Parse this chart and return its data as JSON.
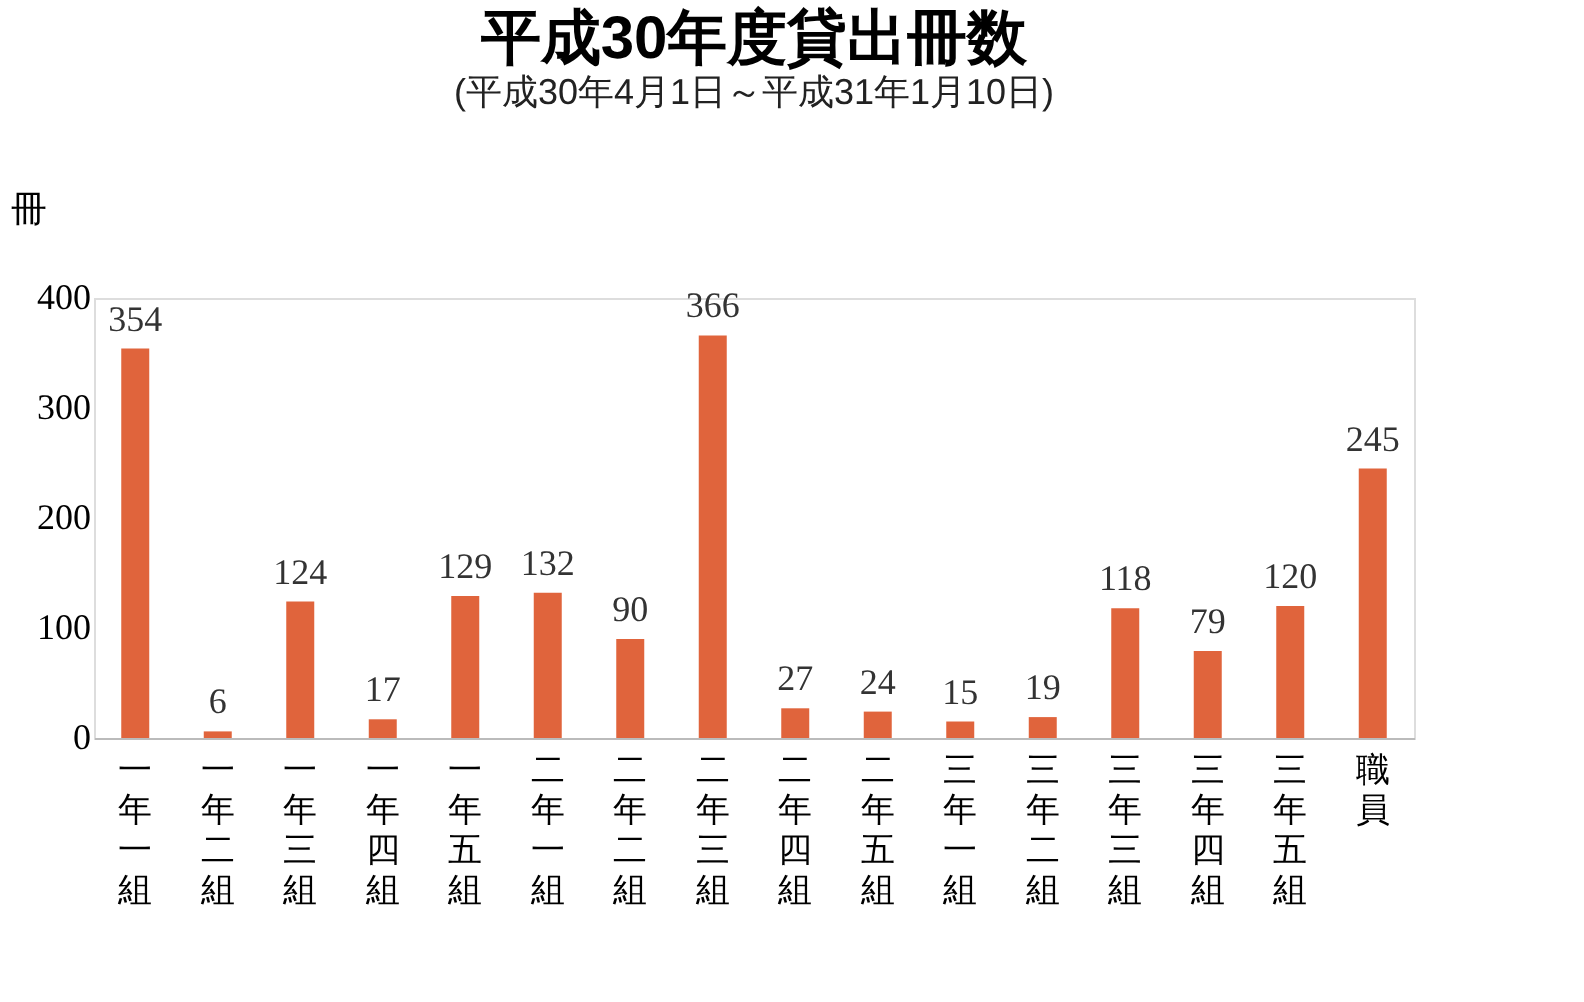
{
  "chart_data": {
    "type": "bar",
    "title": "平成30年度貸出冊数",
    "subtitle": "(平成30年4月1日～平成31年1月10日)",
    "ylabel": "冊",
    "categories": [
      "一年一組",
      "一年二組",
      "一年三組",
      "一年四組",
      "一年五組",
      "二年一組",
      "二年二組",
      "二年三組",
      "二年四組",
      "二年五組",
      "三年一組",
      "三年二組",
      "三年三組",
      "三年四組",
      "三年五組",
      "職員"
    ],
    "values": [
      354,
      6,
      124,
      17,
      129,
      132,
      90,
      366,
      27,
      24,
      15,
      19,
      118,
      79,
      120,
      245
    ],
    "color": "#e0643c",
    "ylim": [
      0,
      400
    ],
    "yticks": [
      0,
      100,
      200,
      300,
      400
    ],
    "grid": false,
    "data_labels": true
  }
}
